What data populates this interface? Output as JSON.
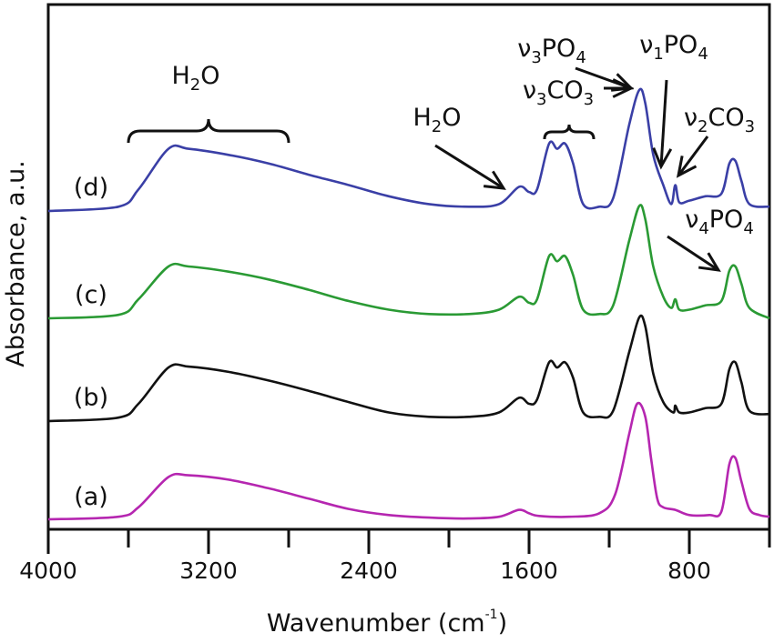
{
  "chart_data": {
    "type": "line",
    "title": "",
    "xlabel": "Wavenumber (cm",
    "xlabel_sup": "-1",
    "xlabel_close": ")",
    "ylabel": "Absorbance, a.u.",
    "xlim": [
      4000,
      400
    ],
    "x_reversed": true,
    "xticks_major": [
      4000,
      3200,
      2400,
      1600,
      800
    ],
    "xticks_major_labels": [
      "4000",
      "3200",
      "2400",
      "1600",
      "800"
    ],
    "xticks_minor": [
      3600,
      2800,
      2000,
      1200,
      400
    ],
    "yticks": [],
    "grid": false,
    "legend": "none (inline labels)",
    "series": [
      {
        "name": "(a)",
        "color": "#b526b0",
        "offset": 0,
        "points": [
          [
            4000,
            0.01
          ],
          [
            3650,
            0.04
          ],
          [
            3550,
            0.15
          ],
          [
            3400,
            0.5
          ],
          [
            3300,
            0.52
          ],
          [
            3100,
            0.47
          ],
          [
            2900,
            0.37
          ],
          [
            2700,
            0.25
          ],
          [
            2500,
            0.13
          ],
          [
            2300,
            0.06
          ],
          [
            2100,
            0.03
          ],
          [
            1900,
            0.02
          ],
          [
            1750,
            0.04
          ],
          [
            1650,
            0.12
          ],
          [
            1600,
            0.08
          ],
          [
            1550,
            0.05
          ],
          [
            1400,
            0.04
          ],
          [
            1250,
            0.08
          ],
          [
            1170,
            0.3
          ],
          [
            1100,
            1.0
          ],
          [
            1060,
            1.35
          ],
          [
            1020,
            1.2
          ],
          [
            990,
            0.7
          ],
          [
            960,
            0.25
          ],
          [
            930,
            0.15
          ],
          [
            870,
            0.12
          ],
          [
            800,
            0.06
          ],
          [
            700,
            0.06
          ],
          [
            640,
            0.1
          ],
          [
            600,
            0.65
          ],
          [
            570,
            0.72
          ],
          [
            540,
            0.45
          ],
          [
            500,
            0.13
          ],
          [
            450,
            0.06
          ],
          [
            400,
            0.04
          ]
        ]
      },
      {
        "name": "(b)",
        "color": "#111111",
        "offset": 1,
        "points": [
          [
            4000,
            0.0
          ],
          [
            3650,
            0.04
          ],
          [
            3550,
            0.2
          ],
          [
            3400,
            0.62
          ],
          [
            3300,
            0.63
          ],
          [
            3100,
            0.57
          ],
          [
            2900,
            0.47
          ],
          [
            2700,
            0.35
          ],
          [
            2500,
            0.22
          ],
          [
            2300,
            0.1
          ],
          [
            2100,
            0.05
          ],
          [
            1900,
            0.05
          ],
          [
            1750,
            0.1
          ],
          [
            1650,
            0.27
          ],
          [
            1600,
            0.2
          ],
          [
            1560,
            0.25
          ],
          [
            1500,
            0.68
          ],
          [
            1460,
            0.62
          ],
          [
            1420,
            0.68
          ],
          [
            1380,
            0.5
          ],
          [
            1330,
            0.1
          ],
          [
            1250,
            0.05
          ],
          [
            1180,
            0.12
          ],
          [
            1100,
            0.8
          ],
          [
            1050,
            1.2
          ],
          [
            1020,
            1.1
          ],
          [
            980,
            0.55
          ],
          [
            930,
            0.22
          ],
          [
            880,
            0.1
          ],
          [
            870,
            0.18
          ],
          [
            850,
            0.1
          ],
          [
            800,
            0.1
          ],
          [
            720,
            0.15
          ],
          [
            640,
            0.2
          ],
          [
            600,
            0.6
          ],
          [
            570,
            0.68
          ],
          [
            540,
            0.45
          ],
          [
            500,
            0.12
          ],
          [
            400,
            0.08
          ]
        ]
      },
      {
        "name": "(c)",
        "color": "#2a9a34",
        "offset": 2,
        "points": [
          [
            4000,
            0.0
          ],
          [
            3650,
            0.04
          ],
          [
            3550,
            0.22
          ],
          [
            3400,
            0.6
          ],
          [
            3300,
            0.6
          ],
          [
            3100,
            0.54
          ],
          [
            2900,
            0.45
          ],
          [
            2700,
            0.33
          ],
          [
            2500,
            0.2
          ],
          [
            2300,
            0.1
          ],
          [
            2100,
            0.05
          ],
          [
            1900,
            0.05
          ],
          [
            1750,
            0.1
          ],
          [
            1650,
            0.25
          ],
          [
            1600,
            0.18
          ],
          [
            1560,
            0.22
          ],
          [
            1500,
            0.72
          ],
          [
            1460,
            0.66
          ],
          [
            1420,
            0.72
          ],
          [
            1380,
            0.5
          ],
          [
            1330,
            0.1
          ],
          [
            1250,
            0.05
          ],
          [
            1180,
            0.15
          ],
          [
            1100,
            0.9
          ],
          [
            1050,
            1.3
          ],
          [
            1020,
            1.15
          ],
          [
            980,
            0.6
          ],
          [
            930,
            0.25
          ],
          [
            890,
            0.12
          ],
          [
            870,
            0.22
          ],
          [
            850,
            0.1
          ],
          [
            800,
            0.1
          ],
          [
            720,
            0.15
          ],
          [
            640,
            0.2
          ],
          [
            600,
            0.55
          ],
          [
            570,
            0.6
          ],
          [
            540,
            0.4
          ],
          [
            500,
            0.12
          ],
          [
            400,
            0.0
          ]
        ]
      },
      {
        "name": "(d)",
        "color": "#3a3fa6",
        "offset": 3,
        "points": [
          [
            4000,
            0.0
          ],
          [
            3650,
            0.05
          ],
          [
            3550,
            0.25
          ],
          [
            3400,
            0.72
          ],
          [
            3300,
            0.72
          ],
          [
            3100,
            0.65
          ],
          [
            2900,
            0.55
          ],
          [
            2700,
            0.42
          ],
          [
            2500,
            0.3
          ],
          [
            2300,
            0.17
          ],
          [
            2100,
            0.08
          ],
          [
            1900,
            0.05
          ],
          [
            1750,
            0.08
          ],
          [
            1650,
            0.28
          ],
          [
            1600,
            0.22
          ],
          [
            1560,
            0.25
          ],
          [
            1500,
            0.78
          ],
          [
            1460,
            0.72
          ],
          [
            1420,
            0.78
          ],
          [
            1380,
            0.55
          ],
          [
            1330,
            0.08
          ],
          [
            1250,
            0.05
          ],
          [
            1180,
            0.15
          ],
          [
            1100,
            1.0
          ],
          [
            1050,
            1.4
          ],
          [
            1020,
            1.25
          ],
          [
            980,
            0.65
          ],
          [
            930,
            0.3
          ],
          [
            890,
            0.08
          ],
          [
            870,
            0.3
          ],
          [
            850,
            0.1
          ],
          [
            800,
            0.12
          ],
          [
            720,
            0.17
          ],
          [
            640,
            0.2
          ],
          [
            600,
            0.55
          ],
          [
            570,
            0.58
          ],
          [
            540,
            0.35
          ],
          [
            500,
            0.08
          ],
          [
            400,
            0.05
          ]
        ]
      }
    ],
    "annotations": [
      {
        "text": "H",
        "sub": "2",
        "tail": "O",
        "kind": "brace",
        "x_range": [
          3600,
          2800
        ]
      },
      {
        "text": "H",
        "sub": "2",
        "tail": "O",
        "kind": "arrow",
        "target_x": 1640,
        "series": "(d)"
      },
      {
        "text": "ν",
        "sub": "3",
        "tail": "CO",
        "sub2": "3",
        "kind": "brace",
        "x_range": [
          1500,
          1300
        ]
      },
      {
        "text": "ν",
        "sub": "3",
        "tail": "PO",
        "sub2": "4",
        "kind": "arrow",
        "target_x": 1050,
        "series": "(d)"
      },
      {
        "text": "ν",
        "sub": "1",
        "tail": "PO",
        "sub2": "4",
        "kind": "arrow",
        "target_x": 960,
        "series": "(d)"
      },
      {
        "text": "ν",
        "sub": "2",
        "tail": "CO",
        "sub2": "3",
        "kind": "arrow",
        "target_x": 870,
        "series": "(d)"
      },
      {
        "text": "ν",
        "sub": "4",
        "tail": "PO",
        "sub2": "4",
        "kind": "arrow",
        "target_x": 600,
        "series": "(c)"
      }
    ]
  }
}
